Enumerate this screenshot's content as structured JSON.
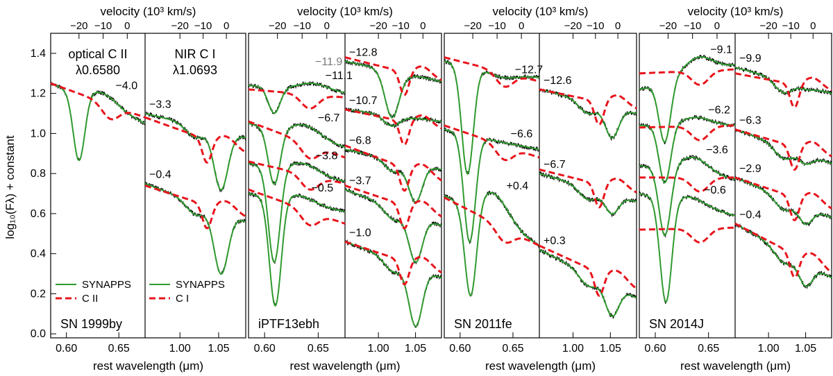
{
  "figure": {
    "ylabel": "log₁₀(Fλ) + constant",
    "yticks": [
      "0.0",
      "0.2",
      "0.4",
      "0.6",
      "0.8",
      "1.0",
      "1.2",
      "1.4"
    ],
    "top_axis_label": "velocity (10³ km/s)",
    "bottom_axis_label": "rest wavelength (μm)",
    "optical_xticks": [
      "0.60",
      "0.65"
    ],
    "nir_xticks": [
      "1.00",
      "1.05"
    ],
    "velocity_ticks": [
      "−20",
      "−10",
      "0"
    ]
  },
  "colors": {
    "observed": "#000000",
    "synapps": "#2e9a2e",
    "ion_component": "#e8141c",
    "late_epoch": "#777777"
  },
  "chart_data": [
    {
      "type": "line",
      "supernova": "SN 1999by",
      "feature_labels": [
        "optical C II",
        "λ0.6580",
        "NIR C I",
        "λ1.0693"
      ],
      "legend_optical": [
        "SYNAPPS",
        "C II"
      ],
      "legend_nir": [
        "SYNAPPS",
        "C I"
      ],
      "optical": {
        "xrange": [
          0.585,
          0.675
        ],
        "spectra": [
          {
            "phase": "−4.0",
            "left": 1.25,
            "right": 1.05,
            "trough_x": 0.612,
            "trough_y": 0.85,
            "peak_x": 0.635,
            "peak_y": 1.2,
            "continuum_left": 1.25,
            "continuum_right": 1.08
          }
        ]
      },
      "nir": {
        "xrange": [
          0.955,
          1.085
        ],
        "spectra": [
          {
            "phase": "−3.3",
            "left": 1.1,
            "right": 0.98,
            "trough_x": 1.053,
            "trough_y": 0.72,
            "c_left": 1.08,
            "c_right": 0.9
          },
          {
            "phase": "−0.4",
            "left": 0.75,
            "right": 0.56,
            "trough_x": 1.053,
            "trough_y": 0.3,
            "c_left": 0.74,
            "c_right": 0.58
          }
        ]
      }
    },
    {
      "type": "line",
      "supernova": "iPTF13ebh",
      "optical": {
        "xrange": [
          0.585,
          0.675
        ],
        "spectra": [
          {
            "phase": "−11.1",
            "left": 1.24,
            "right": 1.2,
            "trough_x": 0.609,
            "trough_y": 1.1,
            "peak_x": 0.645,
            "peak_y": 1.25,
            "continuum_left": 1.22,
            "continuum_right": 1.18
          },
          {
            "phase": "−6.7",
            "left": 1.05,
            "right": 0.93,
            "trough_x": 0.609,
            "trough_y": 0.74,
            "peak_x": 0.638,
            "peak_y": 1.04,
            "continuum_left": 1.06,
            "continuum_right": 0.88
          },
          {
            "phase": "−3.8",
            "left": 0.85,
            "right": 0.76,
            "trough_x": 0.609,
            "trough_y": 0.35,
            "peak_x": 0.636,
            "peak_y": 0.85,
            "continuum_left": 0.86,
            "continuum_right": 0.75
          },
          {
            "phase": "−0.5",
            "left": 0.7,
            "right": 0.61,
            "trough_x": 0.61,
            "trough_y": 0.13,
            "peak_x": 0.632,
            "peak_y": 0.69,
            "continuum_left": 0.72,
            "continuum_right": 0.55
          }
        ],
        "extra_phase": "−11.9"
      },
      "nir": {
        "xrange": [
          0.955,
          1.085
        ],
        "spectra": [
          {
            "phase": "−12.8",
            "left": 1.36,
            "right": 1.26,
            "trough_x": 1.018,
            "trough_y": 1.14,
            "c_left": 1.38,
            "c_right": 1.26
          },
          {
            "phase": "−10.7",
            "left": 1.12,
            "right": 1.06,
            "trough_x": 1.03,
            "trough_y": 1.1,
            "c_left": 1.12,
            "c_right": 1.02
          },
          {
            "phase": "−6.8",
            "left": 0.92,
            "right": 0.82,
            "trough_x": 1.05,
            "trough_y": 0.66,
            "c_left": 0.94,
            "c_right": 0.76
          },
          {
            "phase": "−3.7",
            "left": 0.72,
            "right": 0.54,
            "trough_x": 1.05,
            "trough_y": 0.36,
            "c_left": 0.74,
            "c_right": 0.58
          },
          {
            "phase": "−1.0",
            "left": 0.46,
            "right": 0.28,
            "trough_x": 1.05,
            "trough_y": 0.04,
            "c_left": 0.46,
            "c_right": 0.3
          }
        ]
      }
    },
    {
      "type": "line",
      "supernova": "SN 2011fe",
      "optical": {
        "xrange": [
          0.585,
          0.675
        ],
        "spectra": [
          {
            "phase": "−12.7",
            "left": 1.36,
            "right": 1.28,
            "trough_x": 0.607,
            "trough_y": 0.8,
            "peak_x": 0.64,
            "peak_y": 1.28,
            "continuum_left": 1.38,
            "continuum_right": 1.26
          },
          {
            "phase": "−6.6",
            "left": 1.02,
            "right": 0.92,
            "trough_x": 0.609,
            "trough_y": 0.46,
            "peak_x": 0.636,
            "peak_y": 0.96,
            "continuum_left": 1.04,
            "continuum_right": 0.88
          },
          {
            "phase": "+0.4",
            "left": 0.69,
            "right": 0.44,
            "trough_x": 0.61,
            "trough_y": 0.15,
            "peak_x": 0.632,
            "peak_y": 0.7,
            "continuum_left": 0.68,
            "continuum_right": 0.44
          }
        ]
      },
      "nir": {
        "xrange": [
          0.955,
          1.085
        ],
        "spectra": [
          {
            "phase": "−12.6",
            "left": 1.22,
            "right": 1.1,
            "trough_x": 1.052,
            "trough_y": 0.98,
            "c_left": 1.22,
            "c_right": 1.12
          },
          {
            "phase": "−6.7",
            "left": 0.8,
            "right": 0.66,
            "trough_x": 1.052,
            "trough_y": 0.6,
            "c_left": 0.82,
            "c_right": 0.7
          },
          {
            "phase": "+0.3",
            "left": 0.42,
            "right": 0.18,
            "trough_x": 1.052,
            "trough_y": 0.09,
            "c_left": 0.44,
            "c_right": 0.22
          }
        ]
      }
    },
    {
      "type": "line",
      "supernova": "SN 2014J",
      "optical": {
        "xrange": [
          0.585,
          0.675
        ],
        "spectra": [
          {
            "phase": "−9.1",
            "left": 1.22,
            "right": 1.34,
            "trough_x": 0.609,
            "trough_y": 0.95,
            "peak_x": 0.64,
            "peak_y": 1.38,
            "continuum_left": 1.3,
            "continuum_right": 1.32
          },
          {
            "phase": "−6.2",
            "left": 1.04,
            "right": 1.04,
            "trough_x": 0.609,
            "trough_y": 0.75,
            "peak_x": 0.638,
            "peak_y": 1.08,
            "continuum_left": 1.03,
            "continuum_right": 1.04
          },
          {
            "phase": "−3.6",
            "left": 0.84,
            "right": 0.77,
            "trough_x": 0.609,
            "trough_y": 0.48,
            "peak_x": 0.636,
            "peak_y": 0.88,
            "continuum_left": 0.78,
            "continuum_right": 0.78
          },
          {
            "phase": "−0.6",
            "left": 0.7,
            "right": 0.59,
            "trough_x": 0.61,
            "trough_y": 0.15,
            "peak_x": 0.634,
            "peak_y": 0.68,
            "continuum_left": 0.52,
            "continuum_right": 0.53
          }
        ]
      },
      "nir": {
        "xrange": [
          0.955,
          1.085
        ],
        "spectra": [
          {
            "phase": "−9.9",
            "left": 1.33,
            "right": 1.2,
            "trough_x": 1.052,
            "trough_y": 1.22,
            "c_left": 1.3,
            "c_right": 1.21
          },
          {
            "phase": "−6.3",
            "left": 1.02,
            "right": 0.85,
            "trough_x": 1.05,
            "trough_y": 0.85,
            "c_left": 1.02,
            "c_right": 0.88
          },
          {
            "phase": "−2.9",
            "left": 0.78,
            "right": 0.58,
            "trough_x": 1.05,
            "trough_y": 0.55,
            "c_left": 0.78,
            "c_right": 0.62
          },
          {
            "phase": "−0.4",
            "left": 0.55,
            "right": 0.28,
            "trough_x": 1.05,
            "trough_y": 0.24,
            "c_left": 0.55,
            "c_right": 0.3
          }
        ]
      }
    }
  ]
}
